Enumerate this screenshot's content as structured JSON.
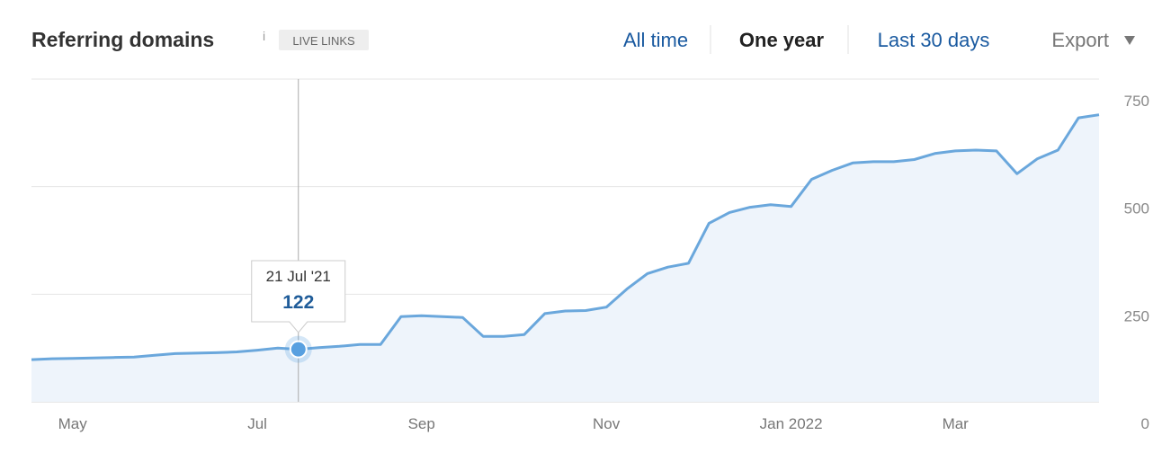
{
  "header": {
    "title": "Referring domains",
    "info": "i",
    "badge": "LIVE LINKS",
    "ranges": [
      "All time",
      "One year",
      "Last 30 days"
    ],
    "active_range": 1,
    "export": "Export"
  },
  "chart_data": {
    "type": "area",
    "categories": [
      null,
      null,
      "May",
      null,
      null,
      null,
      null,
      null,
      null,
      null,
      null,
      "Jul",
      null,
      null,
      null,
      null,
      null,
      null,
      null,
      "Sep",
      null,
      null,
      null,
      null,
      null,
      null,
      null,
      null,
      "Nov",
      null,
      null,
      null,
      null,
      null,
      null,
      null,
      null,
      "Jan 2022",
      null,
      null,
      null,
      null,
      null,
      null,
      null,
      "Mar",
      null,
      null,
      null,
      null,
      null,
      null,
      null
    ],
    "values": [
      98,
      100,
      101,
      102,
      103,
      104,
      108,
      112,
      113,
      114,
      116,
      120,
      125,
      122,
      126,
      129,
      133,
      133,
      198,
      200,
      198,
      196,
      152,
      152,
      156,
      205,
      211,
      212,
      220,
      262,
      298,
      313,
      322,
      415,
      440,
      452,
      458,
      454,
      517,
      538,
      555,
      558,
      558,
      563,
      577,
      583,
      585,
      583,
      530,
      565,
      585,
      660,
      667
    ],
    "color": "#6aa7dc",
    "fill_color": "#eef4fb",
    "ylim": [
      0,
      750
    ],
    "yticks": [
      0,
      250,
      500,
      750
    ],
    "grid": true,
    "tooltip": {
      "label": "21 Jul '21",
      "value": 122
    }
  }
}
